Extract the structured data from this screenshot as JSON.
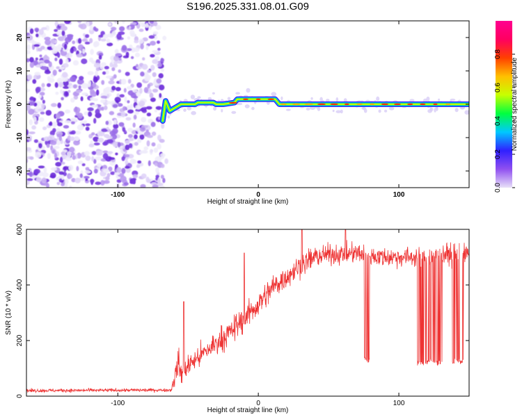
{
  "title": "S196.2025.331.08.01.G09",
  "chart_data": [
    {
      "type": "heatmap",
      "xlabel": "Height of straight line (km)",
      "ylabel": "Frequency (Hz)",
      "xlim": [
        -165,
        150
      ],
      "ylim": [
        -25,
        25
      ],
      "x_ticks": [
        -100,
        0,
        100
      ],
      "x_tick_labels": [
        "-100",
        "0",
        "100"
      ],
      "y_ticks": [
        -20,
        -10,
        0,
        10,
        20
      ],
      "y_tick_labels": [
        "-20",
        "-10",
        "0",
        "10",
        "20"
      ],
      "noise_region_x": [
        -165,
        -68
      ],
      "signal_track": {
        "x": [
          -68,
          -66,
          -63,
          -55,
          -45,
          -43,
          -32,
          -30,
          -25,
          -17,
          -15,
          12,
          15,
          110,
          150
        ],
        "freq": [
          -5,
          1,
          -2,
          0,
          0,
          0.5,
          0.5,
          0,
          0,
          0.5,
          1.5,
          1.5,
          0,
          0,
          0
        ]
      }
    },
    {
      "type": "colorbar",
      "label": "Normalized spectral amplitude",
      "range": [
        0,
        1
      ],
      "ticks": [
        0.0,
        0.2,
        0.4,
        0.6,
        0.8
      ],
      "tick_labels": [
        "0.0",
        "0.2",
        "0.4",
        "0.6",
        "0.8"
      ],
      "colormap": [
        "#e8e0f8",
        "#9050f0",
        "#3020ff",
        "#00c8ff",
        "#00ff40",
        "#c8ff00",
        "#ffc000",
        "#ff4000",
        "#ff0060",
        "#ff0090"
      ]
    },
    {
      "type": "line",
      "xlabel": "Height of straight line (km)",
      "ylabel": "SNR (10 * v/v)",
      "xlim": [
        -165,
        150
      ],
      "ylim": [
        0,
        600
      ],
      "x_ticks": [
        -100,
        0,
        100
      ],
      "x_tick_labels": [
        "-100",
        "0",
        "100"
      ],
      "y_ticks": [
        0,
        200,
        400,
        600
      ],
      "y_tick_labels": [
        "0",
        "200",
        "400",
        "600"
      ],
      "color": "#ee3333",
      "envelope": {
        "x": [
          -165,
          -62,
          -60,
          -57,
          -55,
          -50,
          -40,
          -30,
          -20,
          -10,
          0,
          10,
          20,
          30,
          40,
          50,
          60,
          70,
          80,
          90,
          100,
          110,
          120,
          130,
          140,
          150
        ],
        "mean": [
          20,
          22,
          60,
          120,
          80,
          110,
          150,
          190,
          230,
          280,
          330,
          390,
          430,
          470,
          500,
          510,
          510,
          515,
          505,
          500,
          500,
          500,
          505,
          510,
          510,
          510
        ],
        "noise": [
          6,
          6,
          30,
          60,
          40,
          40,
          40,
          45,
          45,
          50,
          45,
          45,
          45,
          40,
          40,
          35,
          35,
          35,
          35,
          35,
          35,
          35,
          35,
          35,
          40,
          40
        ]
      },
      "spikes": [
        {
          "x": -53,
          "y": 340
        },
        {
          "x": -10,
          "y": 515
        },
        {
          "x": 31,
          "y": 600
        },
        {
          "x": 62,
          "y": 600
        }
      ],
      "dropouts": [
        {
          "x": [
            75,
            79
          ],
          "y": 120
        },
        {
          "x": [
            113,
            118
          ],
          "y": 110
        },
        {
          "x": [
            118,
            124
          ],
          "y": 115
        },
        {
          "x": [
            124,
            131
          ],
          "y": 110
        },
        {
          "x": [
            138,
            146
          ],
          "y": 115
        }
      ]
    }
  ]
}
